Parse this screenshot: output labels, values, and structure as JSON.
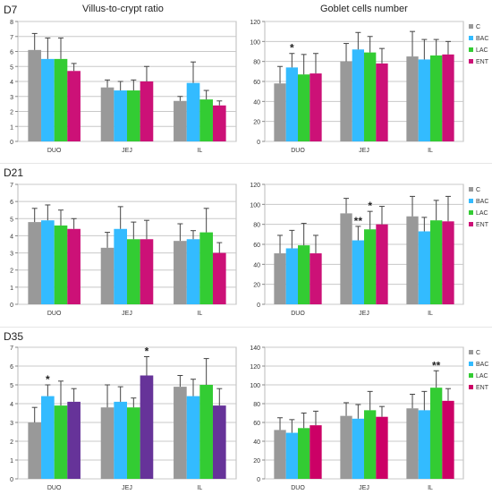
{
  "header": {
    "left_title": "Villus-to-crypt ratio",
    "right_title": "Goblet cells number"
  },
  "rows": [
    {
      "label": "D7"
    },
    {
      "label": "D21"
    },
    {
      "label": "D35"
    }
  ],
  "legend_labels": [
    "C",
    "BAC",
    "LAC",
    "ENT"
  ],
  "colors": {
    "C": "#999999",
    "BAC": "#33bbff",
    "LAC": "#33cc33",
    "ENT": "#cc1177",
    "ENT_D35_left": "#663399",
    "ENT_D35_right": "#cc0066"
  },
  "chart_data": [
    {
      "type": "bar",
      "id": "d7-vc",
      "categories": [
        "DUO",
        "JEJ",
        "IL"
      ],
      "ylim": [
        0,
        8
      ],
      "yticks": [
        0,
        1,
        2,
        3,
        4,
        5,
        6,
        7,
        8
      ],
      "series": [
        {
          "name": "C",
          "values": [
            6.1,
            3.6,
            2.7
          ],
          "err": [
            1.1,
            0.5,
            0.3
          ]
        },
        {
          "name": "BAC",
          "values": [
            5.5,
            3.4,
            3.9
          ],
          "err": [
            1.4,
            0.6,
            1.4
          ]
        },
        {
          "name": "LAC",
          "values": [
            5.5,
            3.4,
            2.8
          ],
          "err": [
            1.4,
            0.7,
            0.6
          ]
        },
        {
          "name": "ENT",
          "values": [
            4.7,
            4.0,
            2.4
          ],
          "err": [
            0.5,
            1.0,
            0.3
          ]
        }
      ],
      "stars": []
    },
    {
      "type": "bar",
      "id": "d7-gc",
      "categories": [
        "DUO",
        "JEJ",
        "IL"
      ],
      "ylim": [
        0,
        120
      ],
      "yticks": [
        0,
        20,
        40,
        60,
        80,
        100,
        120
      ],
      "series": [
        {
          "name": "C",
          "values": [
            58,
            80,
            85
          ],
          "err": [
            17,
            18,
            25
          ]
        },
        {
          "name": "BAC",
          "values": [
            74,
            92,
            82
          ],
          "err": [
            14,
            17,
            20
          ]
        },
        {
          "name": "LAC",
          "values": [
            67,
            89,
            86
          ],
          "err": [
            20,
            16,
            16
          ]
        },
        {
          "name": "ENT",
          "values": [
            68,
            78,
            87
          ],
          "err": [
            20,
            15,
            13
          ]
        }
      ],
      "stars": [
        {
          "cat": 0,
          "series": 1,
          "text": "*"
        }
      ]
    },
    {
      "type": "bar",
      "id": "d21-vc",
      "categories": [
        "DUO",
        "JEJ",
        "IL"
      ],
      "ylim": [
        0,
        7
      ],
      "yticks": [
        0,
        1,
        2,
        3,
        4,
        5,
        6,
        7
      ],
      "series": [
        {
          "name": "C",
          "values": [
            4.8,
            3.3,
            3.7
          ],
          "err": [
            0.8,
            0.9,
            1.0
          ]
        },
        {
          "name": "BAC",
          "values": [
            4.9,
            4.4,
            3.8
          ],
          "err": [
            0.9,
            1.3,
            0.5
          ]
        },
        {
          "name": "LAC",
          "values": [
            4.6,
            3.8,
            4.2
          ],
          "err": [
            0.9,
            1.0,
            1.4
          ]
        },
        {
          "name": "ENT",
          "values": [
            4.4,
            3.8,
            3.0
          ],
          "err": [
            0.6,
            1.1,
            0.6
          ]
        }
      ],
      "stars": []
    },
    {
      "type": "bar",
      "id": "d21-gc",
      "categories": [
        "DUO",
        "JEJ",
        "IL"
      ],
      "ylim": [
        0,
        120
      ],
      "yticks": [
        0,
        20,
        40,
        60,
        80,
        100,
        120
      ],
      "series": [
        {
          "name": "C",
          "values": [
            51,
            91,
            88
          ],
          "err": [
            18,
            15,
            20
          ]
        },
        {
          "name": "BAC",
          "values": [
            56,
            64,
            73
          ],
          "err": [
            18,
            14,
            14
          ]
        },
        {
          "name": "LAC",
          "values": [
            59,
            75,
            84
          ],
          "err": [
            22,
            18,
            20
          ]
        },
        {
          "name": "ENT",
          "values": [
            51,
            80,
            83
          ],
          "err": [
            18,
            18,
            25
          ]
        }
      ],
      "stars": [
        {
          "cat": 1,
          "series": 1,
          "text": "**"
        },
        {
          "cat": 1,
          "series": 2,
          "text": "*"
        }
      ]
    },
    {
      "type": "bar",
      "id": "d35-vc",
      "categories": [
        "DUO",
        "JEJ",
        "IL"
      ],
      "ylim": [
        0,
        7
      ],
      "yticks": [
        0,
        1,
        2,
        3,
        4,
        5,
        6,
        7
      ],
      "series": [
        {
          "name": "C",
          "values": [
            3.0,
            3.8,
            4.9
          ],
          "err": [
            0.8,
            1.2,
            0.6
          ]
        },
        {
          "name": "BAC",
          "values": [
            4.4,
            4.1,
            4.4
          ],
          "err": [
            0.6,
            0.8,
            0.9
          ]
        },
        {
          "name": "LAC",
          "values": [
            3.9,
            3.8,
            5.0
          ],
          "err": [
            1.3,
            0.5,
            1.4
          ]
        },
        {
          "name": "ENT",
          "values": [
            4.1,
            5.5,
            3.9
          ],
          "err": [
            0.7,
            1.0,
            0.9
          ]
        }
      ],
      "stars": [
        {
          "cat": 0,
          "series": 1,
          "text": "*"
        },
        {
          "cat": 1,
          "series": 3,
          "text": "*"
        }
      ]
    },
    {
      "type": "bar",
      "id": "d35-gc",
      "categories": [
        "DUO",
        "JEJ",
        "IL"
      ],
      "ylim": [
        0,
        140
      ],
      "yticks": [
        0,
        20,
        40,
        60,
        80,
        100,
        120,
        140
      ],
      "series": [
        {
          "name": "C",
          "values": [
            52,
            67,
            75
          ],
          "err": [
            13,
            14,
            15
          ]
        },
        {
          "name": "BAC",
          "values": [
            49,
            64,
            73
          ],
          "err": [
            14,
            15,
            20
          ]
        },
        {
          "name": "LAC",
          "values": [
            54,
            73,
            97
          ],
          "err": [
            16,
            20,
            18
          ]
        },
        {
          "name": "ENT",
          "values": [
            57,
            66,
            83
          ],
          "err": [
            15,
            11,
            13
          ]
        }
      ],
      "stars": [
        {
          "cat": 2,
          "series": 2,
          "text": "**"
        }
      ]
    }
  ]
}
